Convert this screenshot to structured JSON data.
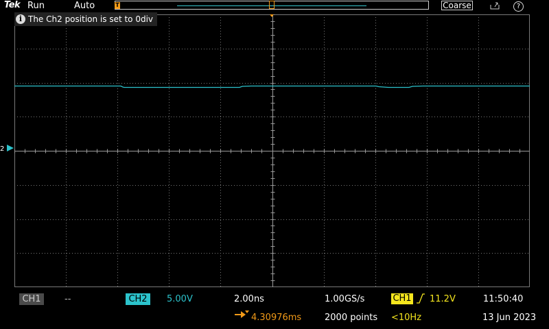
{
  "topbar": {
    "brand": "Tek",
    "run_state": "Run",
    "trigger_mode": "Auto",
    "trigger_marker": "T",
    "knob_mode": "Coarse",
    "help_label": "?"
  },
  "message": {
    "icon": "info-icon",
    "text": "The Ch2 position is set to 0div"
  },
  "display": {
    "channel_marker": "2",
    "trace_color": "#2cc3cc",
    "grid_color": "#7a7a7a",
    "trigger_color": "#f29a18"
  },
  "status": {
    "ch1_label": "CH1",
    "ch1_scale": "--",
    "ch2_label": "CH2",
    "ch2_scale": "5.00V",
    "timebase": "2.00ns",
    "sample_rate": "1.00GS/s",
    "record_length": "2000 points",
    "trigger_source": "CH1",
    "trigger_level": "11.2V",
    "trigger_freq": "<10Hz",
    "horizontal_delay": "4.30976ms",
    "time": "11:50:40",
    "date": "13 Jun 2023"
  }
}
